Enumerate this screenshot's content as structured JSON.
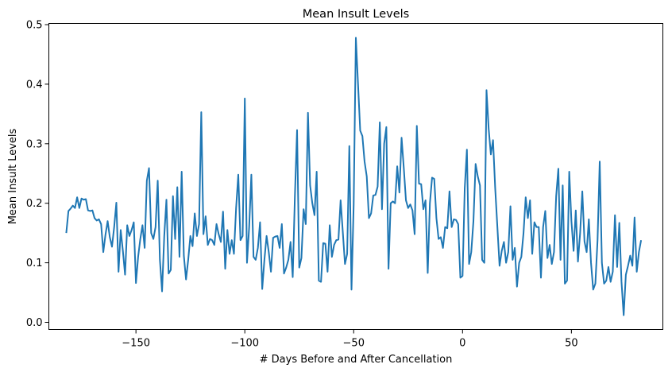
{
  "chart_data": {
    "type": "line",
    "title": "Mean Insult Levels",
    "xlabel": "# Days Before and After Cancellation",
    "ylabel": "Mean Insult Levels",
    "xlim": [
      -190,
      92
    ],
    "ylim": [
      -0.012,
      0.502
    ],
    "xticks": [
      -150,
      -100,
      -50,
      0,
      50
    ],
    "xtick_labels": [
      "−150",
      "−100",
      "−50",
      "0",
      "50"
    ],
    "yticks": [
      0.0,
      0.1,
      0.2,
      0.3,
      0.4,
      0.5
    ],
    "ytick_labels": [
      "0.0",
      "0.1",
      "0.2",
      "0.3",
      "0.4",
      "0.5"
    ],
    "grid": false,
    "line_color": "#1f77b4",
    "series": [
      {
        "x": [
          -182,
          -181,
          -180,
          -179,
          -178,
          -177,
          -176,
          -175,
          -174,
          -173,
          -172,
          -171,
          -170,
          -169,
          -168,
          -167,
          -166,
          -165,
          -164,
          -163,
          -162,
          -161,
          -160,
          -159,
          -158,
          -157,
          -156,
          -155,
          -154,
          -153,
          -152,
          -151,
          -150,
          -149,
          -148,
          -147,
          -146,
          -145,
          -144,
          -143,
          -142,
          -141,
          -140,
          -139,
          -138,
          -137,
          -136,
          -135,
          -134,
          -133,
          -132,
          -131,
          -130,
          -129,
          -128,
          -127,
          -126,
          -125,
          -124,
          -123,
          -122,
          -121,
          -120,
          -119,
          -118,
          -117,
          -116,
          -115,
          -114,
          -113,
          -112,
          -111,
          -110,
          -109,
          -108,
          -107,
          -106,
          -105,
          -104,
          -103,
          -102,
          -101,
          -100,
          -99,
          -98,
          -97,
          -96,
          -95,
          -94,
          -93,
          -92,
          -91,
          -90,
          -89,
          -88,
          -87,
          -86,
          -85,
          -84,
          -83,
          -82,
          -81,
          -80,
          -79,
          -78,
          -77,
          -76,
          -75,
          -74,
          -73,
          -72,
          -71,
          -70,
          -69,
          -68,
          -67,
          -66,
          -65,
          -64,
          -63,
          -62,
          -61,
          -60,
          -59,
          -58,
          -57,
          -56,
          -55,
          -54,
          -53,
          -52,
          -51,
          -50,
          -49,
          -48,
          -47,
          -46,
          -45,
          -44,
          -43,
          -42,
          -41,
          -40,
          -39,
          -38,
          -37,
          -36,
          -35,
          -34,
          -33,
          -32,
          -31,
          -30,
          -29,
          -28,
          -27,
          -26,
          -25,
          -24,
          -23,
          -22,
          -21,
          -20,
          -19,
          -18,
          -17,
          -16,
          -15,
          -14,
          -13,
          -12,
          -11,
          -10,
          -9,
          -8,
          -7,
          -6,
          -5,
          -4,
          -3,
          -2,
          -1,
          0,
          1,
          2,
          3,
          4,
          5,
          6,
          7,
          8,
          9,
          10,
          11,
          12,
          13,
          14,
          15,
          16,
          17,
          18,
          19,
          20,
          21,
          22,
          23,
          24,
          25,
          26,
          27,
          28,
          29,
          30,
          31,
          32,
          33,
          34,
          35,
          36,
          37,
          38,
          39,
          40,
          41,
          42,
          43,
          44,
          45,
          46,
          47,
          48,
          49,
          50,
          51,
          52,
          53,
          54,
          55,
          56,
          57,
          58,
          59,
          60,
          61,
          62,
          63,
          64,
          65,
          66,
          67,
          68,
          69,
          70,
          71,
          72,
          73,
          74,
          75,
          76,
          77,
          78,
          79,
          80,
          81,
          82
        ],
        "y": [
          0.15,
          0.187,
          0.191,
          0.196,
          0.192,
          0.21,
          0.192,
          0.208,
          0.206,
          0.207,
          0.188,
          0.187,
          0.188,
          0.175,
          0.171,
          0.173,
          0.165,
          0.118,
          0.147,
          0.17,
          0.143,
          0.127,
          0.16,
          0.201,
          0.085,
          0.155,
          0.12,
          0.08,
          0.163,
          0.145,
          0.155,
          0.168,
          0.066,
          0.11,
          0.14,
          0.163,
          0.125,
          0.238,
          0.259,
          0.15,
          0.14,
          0.16,
          0.238,
          0.105,
          0.052,
          0.145,
          0.206,
          0.082,
          0.088,
          0.212,
          0.14,
          0.227,
          0.11,
          0.253,
          0.112,
          0.072,
          0.105,
          0.145,
          0.128,
          0.183,
          0.145,
          0.165,
          0.353,
          0.148,
          0.178,
          0.13,
          0.14,
          0.138,
          0.13,
          0.165,
          0.148,
          0.135,
          0.186,
          0.09,
          0.155,
          0.115,
          0.138,
          0.115,
          0.192,
          0.248,
          0.138,
          0.145,
          0.376,
          0.1,
          0.16,
          0.248,
          0.11,
          0.105,
          0.125,
          0.168,
          0.056,
          0.105,
          0.145,
          0.118,
          0.085,
          0.142,
          0.144,
          0.145,
          0.125,
          0.165,
          0.082,
          0.092,
          0.105,
          0.135,
          0.076,
          0.212,
          0.323,
          0.092,
          0.108,
          0.19,
          0.165,
          0.352,
          0.23,
          0.2,
          0.18,
          0.253,
          0.07,
          0.068,
          0.133,
          0.132,
          0.085,
          0.163,
          0.11,
          0.13,
          0.138,
          0.139,
          0.205,
          0.152,
          0.098,
          0.115,
          0.296,
          0.055,
          0.198,
          0.478,
          0.4,
          0.322,
          0.313,
          0.27,
          0.245,
          0.175,
          0.183,
          0.213,
          0.214,
          0.228,
          0.336,
          0.19,
          0.3,
          0.328,
          0.09,
          0.2,
          0.203,
          0.2,
          0.262,
          0.218,
          0.31,
          0.26,
          0.205,
          0.192,
          0.198,
          0.188,
          0.148,
          0.33,
          0.233,
          0.232,
          0.19,
          0.205,
          0.083,
          0.2,
          0.243,
          0.241,
          0.175,
          0.14,
          0.143,
          0.125,
          0.16,
          0.158,
          0.22,
          0.16,
          0.173,
          0.172,
          0.165,
          0.075,
          0.078,
          0.225,
          0.29,
          0.098,
          0.118,
          0.17,
          0.266,
          0.245,
          0.23,
          0.105,
          0.1,
          0.39,
          0.325,
          0.282,
          0.306,
          0.225,
          0.16,
          0.095,
          0.12,
          0.135,
          0.1,
          0.118,
          0.195,
          0.105,
          0.125,
          0.06,
          0.1,
          0.11,
          0.15,
          0.21,
          0.175,
          0.205,
          0.115,
          0.168,
          0.16,
          0.16,
          0.075,
          0.16,
          0.187,
          0.108,
          0.13,
          0.098,
          0.118,
          0.212,
          0.258,
          0.105,
          0.23,
          0.065,
          0.07,
          0.253,
          0.17,
          0.12,
          0.188,
          0.102,
          0.15,
          0.22,
          0.136,
          0.118,
          0.173,
          0.1,
          0.055,
          0.065,
          0.138,
          0.27,
          0.1,
          0.065,
          0.07,
          0.093,
          0.068,
          0.085,
          0.18,
          0.093,
          0.167,
          0.068,
          0.012,
          0.08,
          0.095,
          0.112,
          0.095,
          0.176,
          0.085,
          0.118,
          0.138
        ]
      }
    ]
  }
}
